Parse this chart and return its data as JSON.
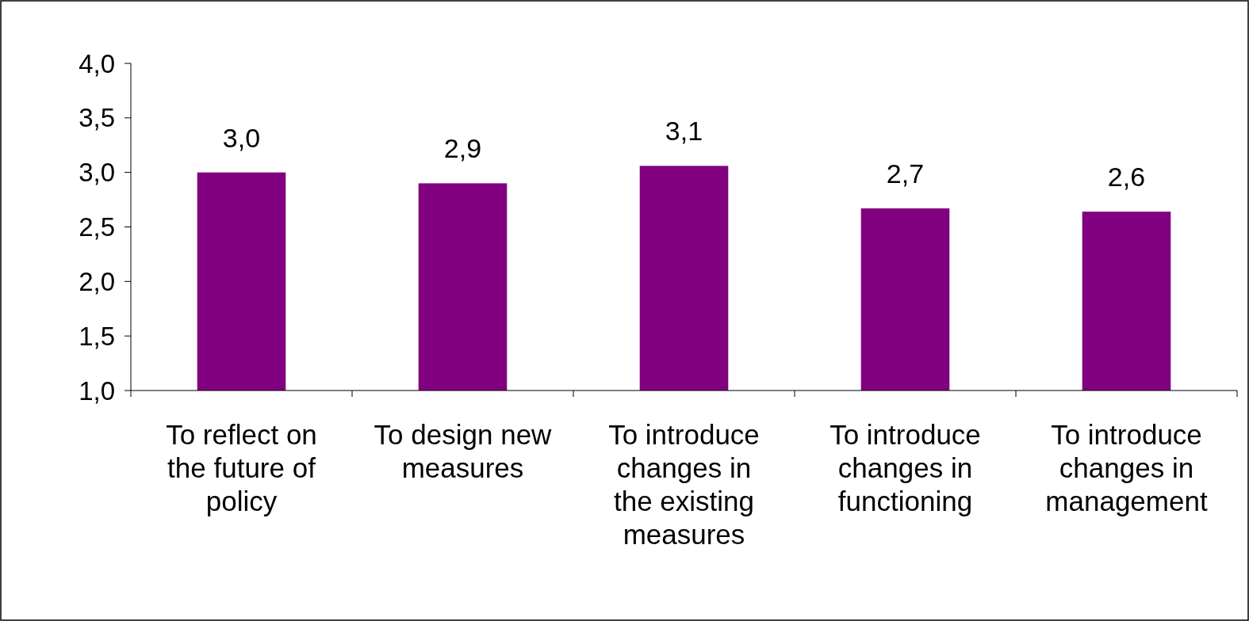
{
  "chart_data": {
    "type": "bar",
    "categories": [
      "To reflect on the future of policy",
      "To design new measures",
      "To introduce changes in the existing measures",
      "To introduce changes in functioning",
      "To introduce changes in management"
    ],
    "values": [
      3.0,
      2.9,
      3.06,
      2.67,
      2.64
    ],
    "value_labels": [
      "3,0",
      "2,9",
      "3,1",
      "2,7",
      "2,6"
    ],
    "color": "#800080",
    "ylim": [
      1,
      4
    ],
    "yticks": [
      {
        "value": 1,
        "label": "1,0"
      },
      {
        "value": 1.5,
        "label": "1,5"
      },
      {
        "value": 2,
        "label": "2,0"
      },
      {
        "value": 2.5,
        "label": "2,5"
      },
      {
        "value": 3,
        "label": "3,0"
      },
      {
        "value": 3.5,
        "label": "3,5"
      },
      {
        "value": 4,
        "label": "4,0"
      }
    ],
    "grid": false
  }
}
